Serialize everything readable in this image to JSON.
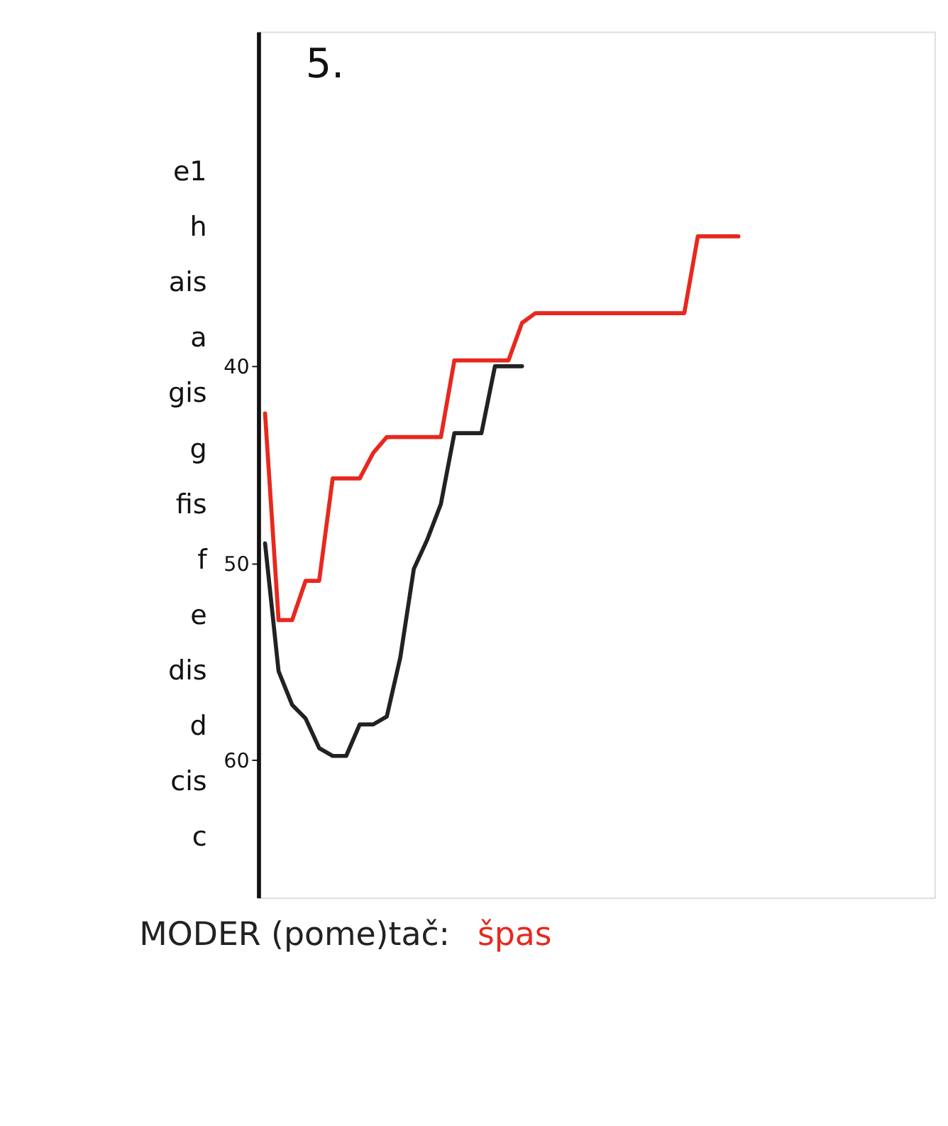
{
  "chart_data": {
    "type": "line",
    "title": "5.",
    "categories": [
      null,
      null,
      null,
      null,
      null,
      null,
      null,
      null,
      null,
      null,
      null,
      null,
      null,
      null,
      null,
      null,
      null,
      null,
      null,
      null,
      null,
      null,
      null,
      null,
      null,
      null,
      null,
      null,
      null,
      null,
      null,
      null,
      null,
      null,
      null,
      null,
      null,
      null,
      null,
      null,
      null,
      null,
      null,
      null,
      null,
      null,
      null,
      null,
      null,
      null
    ],
    "series": [
      {
        "name": "MODER (pome)tač:",
        "color": "#222222",
        "values": [
          49.0,
          55.5,
          57.2,
          57.9,
          59.4,
          59.8,
          59.8,
          58.2,
          58.2,
          57.8,
          54.8,
          50.3,
          48.8,
          47.0,
          43.4,
          43.4,
          43.4,
          40.0,
          40.0,
          40.0,
          null,
          null,
          null,
          null,
          null,
          null,
          null,
          null,
          null,
          null,
          null,
          null,
          null,
          null,
          null,
          null,
          null,
          null,
          null,
          null,
          null,
          null,
          null,
          null,
          null,
          null,
          null,
          null,
          null,
          null
        ]
      },
      {
        "name": "špas",
        "color": "#e8281e",
        "values": [
          42.4,
          52.9,
          52.9,
          50.9,
          50.9,
          45.7,
          45.7,
          45.7,
          44.4,
          43.6,
          43.6,
          43.6,
          43.6,
          43.6,
          39.7,
          39.7,
          39.7,
          39.7,
          39.7,
          37.8,
          37.3,
          37.3,
          37.3,
          37.3,
          37.3,
          37.3,
          37.3,
          37.3,
          37.3,
          37.3,
          37.3,
          37.3,
          33.4,
          33.4,
          33.4,
          33.4,
          null,
          null,
          null,
          null,
          null,
          null,
          null,
          null,
          null,
          null,
          null,
          null,
          null,
          null
        ]
      }
    ],
    "ylim": [
      67,
      23
    ],
    "yticks": [
      40,
      50,
      60
    ],
    "annotations": [
      "c",
      "cis",
      "d",
      "dis",
      "e",
      "f",
      "fis",
      "g",
      "gis",
      "a",
      "ais",
      "h",
      "e1"
    ],
    "tick_labels": "y",
    "grid": false,
    "marker": "none",
    "line_style": "solid"
  }
}
